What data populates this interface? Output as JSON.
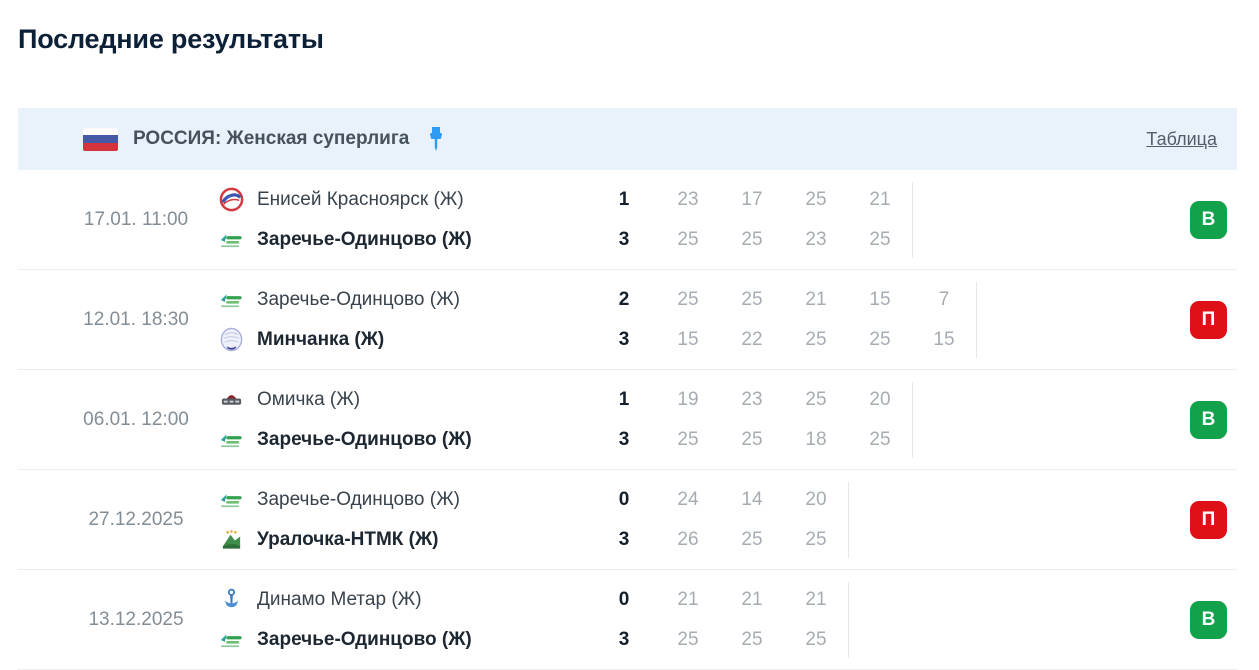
{
  "page": {
    "title": "Последние результаты"
  },
  "league": {
    "label": "РОССИЯ: Женская суперлига",
    "table_link": "Таблица"
  },
  "colors": {
    "win": "#12a24b",
    "loss": "#e01019",
    "pin": "#2e9cf4",
    "league_band": "#e9f1fb",
    "heading": "#0c2037"
  },
  "matches": [
    {
      "date": "17.01. 11:00",
      "home": {
        "name": "Енисей Красноярск (Ж)",
        "logo": "yenisey-krasnoyarsk",
        "bold": false,
        "total": "1",
        "sets": [
          "23",
          "17",
          "25",
          "21"
        ]
      },
      "away": {
        "name": "Заречье-Одинцово (Ж)",
        "logo": "zarechye-odintsovo",
        "bold": true,
        "total": "3",
        "sets": [
          "25",
          "25",
          "23",
          "25"
        ]
      },
      "result": {
        "label": "В",
        "type": "win"
      }
    },
    {
      "date": "12.01. 18:30",
      "home": {
        "name": "Заречье-Одинцово (Ж)",
        "logo": "zarechye-odintsovo",
        "bold": false,
        "total": "2",
        "sets": [
          "25",
          "25",
          "21",
          "15",
          "7"
        ]
      },
      "away": {
        "name": "Минчанка (Ж)",
        "logo": "minchanka",
        "bold": true,
        "total": "3",
        "sets": [
          "15",
          "22",
          "25",
          "25",
          "15"
        ]
      },
      "result": {
        "label": "П",
        "type": "loss"
      }
    },
    {
      "date": "06.01. 12:00",
      "home": {
        "name": "Омичка (Ж)",
        "logo": "omichka",
        "bold": false,
        "total": "1",
        "sets": [
          "19",
          "23",
          "25",
          "20"
        ]
      },
      "away": {
        "name": "Заречье-Одинцово (Ж)",
        "logo": "zarechye-odintsovo",
        "bold": true,
        "total": "3",
        "sets": [
          "25",
          "25",
          "18",
          "25"
        ]
      },
      "result": {
        "label": "В",
        "type": "win"
      }
    },
    {
      "date": "27.12.2025",
      "home": {
        "name": "Заречье-Одинцово (Ж)",
        "logo": "zarechye-odintsovo",
        "bold": false,
        "total": "0",
        "sets": [
          "24",
          "14",
          "20"
        ]
      },
      "away": {
        "name": "Уралочка-НТМК (Ж)",
        "logo": "uralochka-ntmk",
        "bold": true,
        "total": "3",
        "sets": [
          "26",
          "25",
          "25"
        ]
      },
      "result": {
        "label": "П",
        "type": "loss"
      }
    },
    {
      "date": "13.12.2025",
      "home": {
        "name": "Динамо Метар (Ж)",
        "logo": "dinamo-metar",
        "bold": false,
        "total": "0",
        "sets": [
          "21",
          "21",
          "21"
        ]
      },
      "away": {
        "name": "Заречье-Одинцово (Ж)",
        "logo": "zarechye-odintsovo",
        "bold": true,
        "total": "3",
        "sets": [
          "25",
          "25",
          "25"
        ]
      },
      "result": {
        "label": "В",
        "type": "win"
      }
    }
  ]
}
